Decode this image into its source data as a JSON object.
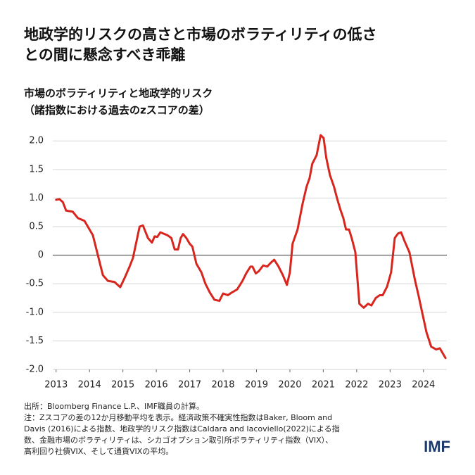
{
  "chart_data": {
    "type": "line",
    "title": [
      "地政学的リスクの高さと市場のボラティリティの低さ",
      "との間に懸念すべき乖離"
    ],
    "subtitle": [
      "市場のボラティリティと地政学的リスク",
      "（諸指数における過去のzスコアの差）"
    ],
    "x": [
      2013.0,
      2013.1,
      2013.2,
      2013.3,
      2013.5,
      2013.65,
      2013.85,
      2014.0,
      2014.1,
      2014.25,
      2014.4,
      2014.55,
      2014.75,
      2014.92,
      2015.05,
      2015.2,
      2015.3,
      2015.5,
      2015.6,
      2015.75,
      2015.87,
      2015.95,
      2016.03,
      2016.12,
      2016.33,
      2016.45,
      2016.55,
      2016.65,
      2016.73,
      2016.8,
      2016.9,
      2017.0,
      2017.08,
      2017.2,
      2017.35,
      2017.47,
      2017.6,
      2017.74,
      2017.89,
      2018.0,
      2018.14,
      2018.27,
      2018.42,
      2018.58,
      2018.69,
      2018.82,
      2018.88,
      2018.98,
      2019.07,
      2019.2,
      2019.32,
      2019.45,
      2019.53,
      2019.66,
      2019.79,
      2019.91,
      2020.0,
      2020.08,
      2020.23,
      2020.38,
      2020.5,
      2020.59,
      2020.67,
      2020.8,
      2020.92,
      2021.01,
      2021.09,
      2021.2,
      2021.32,
      2021.41,
      2021.51,
      2021.6,
      2021.68,
      2021.77,
      2021.85,
      2021.96,
      2022.08,
      2022.21,
      2022.34,
      2022.44,
      2022.57,
      2022.69,
      2022.78,
      2022.91,
      2023.03,
      2023.14,
      2023.24,
      2023.33,
      2023.43,
      2023.58,
      2023.75,
      2023.85,
      2023.96,
      2024.09,
      2024.23,
      2024.38,
      2024.49,
      2024.66
    ],
    "values": [
      0.97,
      0.98,
      0.93,
      0.78,
      0.76,
      0.65,
      0.6,
      0.45,
      0.35,
      0.0,
      -0.35,
      -0.45,
      -0.47,
      -0.56,
      -0.4,
      -0.2,
      -0.05,
      0.5,
      0.52,
      0.3,
      0.22,
      0.33,
      0.32,
      0.4,
      0.35,
      0.3,
      0.1,
      0.1,
      0.3,
      0.37,
      0.3,
      0.2,
      0.15,
      -0.15,
      -0.3,
      -0.5,
      -0.65,
      -0.78,
      -0.8,
      -0.67,
      -0.7,
      -0.65,
      -0.6,
      -0.45,
      -0.32,
      -0.2,
      -0.2,
      -0.32,
      -0.28,
      -0.18,
      -0.2,
      -0.12,
      -0.08,
      -0.2,
      -0.35,
      -0.52,
      -0.3,
      0.2,
      0.45,
      0.9,
      1.2,
      1.35,
      1.6,
      1.75,
      2.1,
      2.05,
      1.7,
      1.4,
      1.2,
      1.0,
      0.8,
      0.65,
      0.45,
      0.45,
      0.3,
      0.05,
      -0.85,
      -0.92,
      -0.85,
      -0.88,
      -0.75,
      -0.7,
      -0.7,
      -0.55,
      -0.3,
      0.3,
      0.38,
      0.4,
      0.25,
      0.05,
      -0.45,
      -0.7,
      -1.0,
      -1.35,
      -1.6,
      -1.65,
      -1.63,
      -1.8
    ],
    "color": "#d8251d",
    "xlim": [
      2012.9,
      2024.7
    ],
    "xticks": [
      2013,
      2014,
      2015,
      2016,
      2017,
      2018,
      2019,
      2020,
      2021,
      2022,
      2023,
      2024
    ],
    "ylim": [
      -2.0,
      2.2
    ],
    "yticks": [
      {
        "value": 2.0,
        "label": "2.0"
      },
      1.5,
      {
        "value": 1.0,
        "label": "1.0"
      },
      0.5,
      0,
      -0.5,
      {
        "value": -1.0,
        "label": "-1.0"
      },
      -1.5,
      {
        "value": -2.0,
        "label": "-2.0"
      }
    ],
    "grid": true,
    "notes": [
      "出所：Bloomberg Finance L.P.、IMF職員の計算。",
      "注：Zスコアの差の12か月移動平均を表示。経済政策不確実性指数はBaker, Bloom and",
      "Davis (2016)による指数、地政学的リスク指数はCaldara and Iacoviello(2022)による指",
      "数、金融市場のボラティリティは、シカゴオプション取引所ボラティリティ指数（VIX）、",
      "高利回り社債VIX、そして通貨VIXの平均。"
    ],
    "logo": "IMF"
  }
}
